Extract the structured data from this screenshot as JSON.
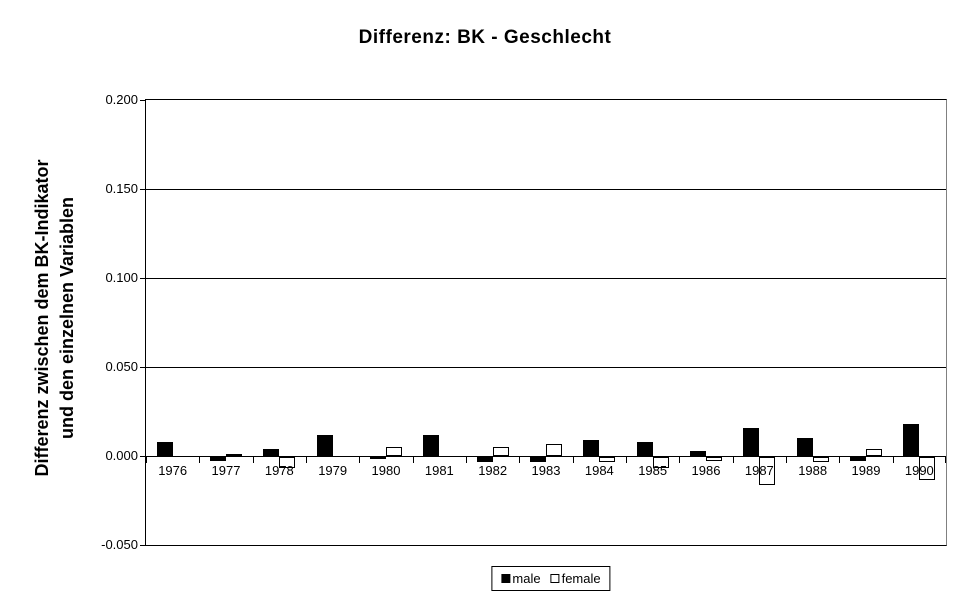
{
  "chart_data": {
    "type": "bar",
    "title": "Differenz: BK - Geschlecht",
    "ylabel_lines": [
      "Differenz zwischen dem BK-Indikator",
      "und den einzelnen Variablen"
    ],
    "ylabel": "Differenz zwischen dem BK-Indikator und den einzelnen Variablen",
    "xlabel": "",
    "categories": [
      "1976",
      "1977",
      "1978",
      "1979",
      "1980",
      "1981",
      "1982",
      "1983",
      "1984",
      "1985",
      "1986",
      "1987",
      "1988",
      "1989",
      "1990"
    ],
    "series": [
      {
        "name": "male",
        "fill": "#000000",
        "values": [
          0.008,
          -0.002,
          0.004,
          0.012,
          -0.001,
          0.012,
          -0.003,
          -0.003,
          0.009,
          0.008,
          0.003,
          0.016,
          0.01,
          -0.002,
          0.018
        ]
      },
      {
        "name": "female",
        "fill": "#ffffff",
        "values": [
          0.0,
          0.001,
          -0.006,
          0.0,
          0.005,
          0.0,
          0.005,
          0.007,
          -0.003,
          -0.006,
          -0.002,
          -0.016,
          -0.003,
          0.004,
          -0.013
        ]
      }
    ],
    "ylim": [
      -0.05,
      0.2
    ],
    "ytick_values": [
      0.2,
      0.15,
      0.1,
      0.05,
      0.0,
      -0.05
    ],
    "ytick_labels": [
      "0.200",
      "0.150",
      "0.100",
      "0.050",
      "0.000",
      "-0.050"
    ],
    "grid": true,
    "legend_position": "bottom"
  },
  "colors": {
    "male": "#000000",
    "female": "#ffffff",
    "axis": "#000000",
    "plot_right_border": "#808080",
    "background": "#ffffff"
  }
}
